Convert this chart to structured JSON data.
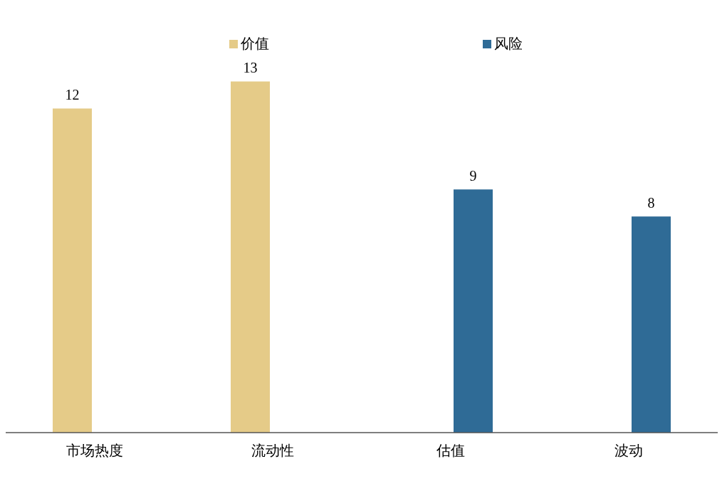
{
  "chart_data": {
    "type": "bar",
    "categories": [
      "市场热度",
      "流动性",
      "估值",
      "波动"
    ],
    "series": [
      {
        "name": "价值",
        "color": "#e5cb88",
        "values": [
          12,
          13,
          null,
          null
        ]
      },
      {
        "name": "风险",
        "color": "#2f6b96",
        "values": [
          null,
          null,
          9,
          8
        ]
      }
    ],
    "data_labels": true,
    "legend": "top",
    "grid": false
  }
}
